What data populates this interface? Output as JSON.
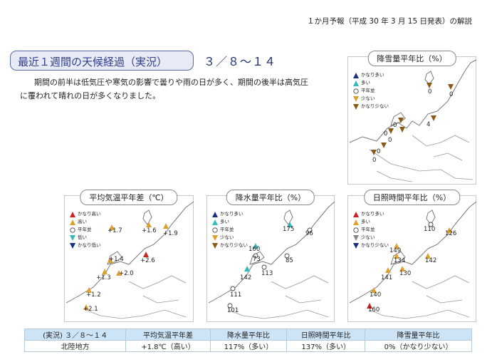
{
  "header_note": "１か月予報（平成 30 年 3 月 15 日発表）の解説",
  "title": "最近１週間の天候経過（実況）",
  "date_range": "３／８〜１４",
  "summary_line1": "期間の前半は低気圧や寒気の影響で曇りや雨の日が多く、期間の後半は高気圧",
  "summary_line2": "に覆われて晴れの日が多くなりました。",
  "legend_colors": {
    "much_above": "#cc2222",
    "above": "#e0a030",
    "normal": "#ffffff",
    "below": "#33bbbb",
    "much_below": "#1a2f80"
  },
  "panels": {
    "snow": {
      "title": "降雪量平年比（%）",
      "legend": [
        "かなり多い",
        "多い",
        "平年並",
        "少ない",
        "かなり少ない"
      ],
      "legend_icons": [
        "up-dark",
        "up-cyan",
        "circle",
        "down-yellow",
        "down-brown"
      ],
      "values": [
        "0",
        "0",
        "0",
        "4",
        "0",
        "0",
        "0",
        "0"
      ]
    },
    "temp": {
      "title": "平均気温平年差（℃）",
      "legend": [
        "かなり高い",
        "高い",
        "平年並",
        "低い",
        "かなり低い"
      ],
      "legend_icons": [
        "up-red",
        "up-yellow",
        "circle",
        "down-cyan",
        "down-dark"
      ],
      "values": [
        "+1.6",
        "+1.9",
        "+1.7",
        "+1.4",
        "+2.6",
        "+2.0",
        "+1.3",
        "+1.2",
        "+2.1"
      ]
    },
    "precip": {
      "title": "降水量平年比（%）",
      "legend": [
        "かなり多い",
        "多い",
        "平年並",
        "少ない",
        "かなり少ない"
      ],
      "legend_icons": [
        "up-dark",
        "up-cyan",
        "circle",
        "down-yellow",
        "down-brown"
      ],
      "values": [
        "175",
        "96",
        "160",
        "73",
        "85",
        "142",
        "113",
        "111",
        "101"
      ]
    },
    "sun": {
      "title": "日照時間平年比（%）",
      "legend": [
        "かなり多い",
        "多い",
        "平年並",
        "少ない",
        "かなり少ない"
      ],
      "legend_icons": [
        "up-red",
        "up-yellow",
        "circle",
        "down-gray",
        "down-dark"
      ],
      "values": [
        "110",
        "126",
        "149",
        "134",
        "142",
        "130",
        "141",
        "140",
        "160"
      ]
    }
  },
  "table": {
    "headers": [
      "(実況) ３／８〜１４",
      "平均気温平年差",
      "降水量平年比",
      "日照時間平年比",
      "降雪量平年比"
    ],
    "row": [
      "北陸地方",
      "+1.8℃（高い）",
      "117%（多い）",
      "137%（多い）",
      "0%（かなり少ない）"
    ]
  }
}
